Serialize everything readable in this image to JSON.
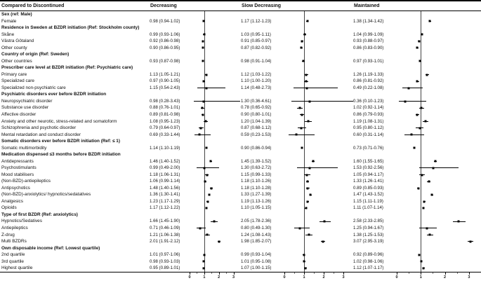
{
  "header": {
    "left": "Compared to Discontinued",
    "groups": [
      "Decreasing",
      "Slow Decreasing",
      "Maintained"
    ]
  },
  "chart_data": {
    "type": "scatter",
    "subtype": "forest-plot",
    "title": "Compared to Discontinued",
    "columns": [
      "Decreasing",
      "Slow Decreasing",
      "Maintained"
    ],
    "axis": {
      "min": 0,
      "max": 3.5,
      "ticks": [
        0,
        1,
        2,
        3
      ],
      "reference_line": 1
    },
    "rows": [
      {
        "type": "section",
        "label": "Sex (ref: Male)"
      },
      {
        "type": "item",
        "label": "Female",
        "groups": [
          {
            "text": "0.98 (0.94-1.02)",
            "est": 0.98,
            "lo": 0.94,
            "hi": 1.02
          },
          {
            "text": "1.17 (1.12-1.23)",
            "est": 1.17,
            "lo": 1.12,
            "hi": 1.23
          },
          {
            "text": "1.38 (1.34-1.42)",
            "est": 1.38,
            "lo": 1.34,
            "hi": 1.42
          }
        ]
      },
      {
        "type": "section",
        "label": "Residence in Sweden at BZDR initiation (Ref: Stockholm county)"
      },
      {
        "type": "item",
        "label": "Skåne",
        "groups": [
          {
            "text": "0.99 (0.93-1.06)",
            "est": 0.99,
            "lo": 0.93,
            "hi": 1.06
          },
          {
            "text": "1.03 (0.95-1.11)",
            "est": 1.03,
            "lo": 0.95,
            "hi": 1.11
          },
          {
            "text": "1.04 (0.99-1.09)",
            "est": 1.04,
            "lo": 0.99,
            "hi": 1.09
          }
        ]
      },
      {
        "type": "item",
        "label": "Västra Götaland",
        "groups": [
          {
            "text": "0.92 (0.86-0.98)",
            "est": 0.92,
            "lo": 0.86,
            "hi": 0.98
          },
          {
            "text": "0.91 (0.85-0.97)",
            "est": 0.91,
            "lo": 0.85,
            "hi": 0.97
          },
          {
            "text": "0.93 (0.88-0.97)",
            "est": 0.93,
            "lo": 0.88,
            "hi": 0.97
          }
        ]
      },
      {
        "type": "item",
        "label": "Other county",
        "groups": [
          {
            "text": "0.90 (0.86-0.95)",
            "est": 0.9,
            "lo": 0.86,
            "hi": 0.95
          },
          {
            "text": "0.87 (0.82-0.92)",
            "est": 0.87,
            "lo": 0.82,
            "hi": 0.92
          },
          {
            "text": "0.86 (0.83-0.90)",
            "est": 0.86,
            "lo": 0.83,
            "hi": 0.9
          }
        ]
      },
      {
        "type": "section",
        "label": "Country of origin (Ref: Sweden)"
      },
      {
        "type": "item",
        "label": "Other countries",
        "groups": [
          {
            "text": "0.93 (0.87-0.98)",
            "est": 0.93,
            "lo": 0.87,
            "hi": 0.98
          },
          {
            "text": "0.98 (0.91-1.04)",
            "est": 0.98,
            "lo": 0.91,
            "hi": 1.04
          },
          {
            "text": "0.97 (0.93-1.01)",
            "est": 0.97,
            "lo": 0.93,
            "hi": 1.01
          }
        ]
      },
      {
        "type": "section",
        "label": "Prescriber care level at BZDR initiation (Ref: Psychiatric care)"
      },
      {
        "type": "item",
        "label": "Primary care",
        "groups": [
          {
            "text": "1.13 (1.05-1.21)",
            "est": 1.13,
            "lo": 1.05,
            "hi": 1.21
          },
          {
            "text": "1.12 (1.03-1.22)",
            "est": 1.12,
            "lo": 1.03,
            "hi": 1.22
          },
          {
            "text": "1.26 (1.19-1.33)",
            "est": 1.26,
            "lo": 1.19,
            "hi": 1.33
          }
        ]
      },
      {
        "type": "item",
        "label": "Specialized care",
        "groups": [
          {
            "text": "0.97 (0.90-1.05)",
            "est": 0.97,
            "lo": 0.9,
            "hi": 1.05
          },
          {
            "text": "1.10 (1.00-1.20)",
            "est": 1.1,
            "lo": 1.0,
            "hi": 1.2
          },
          {
            "text": "0.86 (0.81-0.92)",
            "est": 0.86,
            "lo": 0.81,
            "hi": 0.92
          }
        ]
      },
      {
        "type": "item",
        "label": "Specialized non-psychiatric care",
        "groups": [
          {
            "text": "1.15 (0.54-2.43)",
            "est": 1.15,
            "lo": 0.54,
            "hi": 2.43
          },
          {
            "text": "1.14 (0.48-2.73)",
            "est": 1.14,
            "lo": 0.48,
            "hi": 2.73
          },
          {
            "text": "0.49 (0.22-1.08)",
            "est": 0.49,
            "lo": 0.22,
            "hi": 1.08
          }
        ]
      },
      {
        "type": "section",
        "label": "Psychiatric disorders ever before BZDR initiation"
      },
      {
        "type": "item",
        "label": "Neuropsychiatric disorder",
        "groups": [
          {
            "text": "0.98 (0.28-3.43)",
            "est": 0.98,
            "lo": 0.28,
            "hi": 3.43
          },
          {
            "text": "1.30 (0.36-4.61)",
            "est": 1.3,
            "lo": 0.36,
            "hi": 4.61
          },
          {
            "text": "0.36 (0.10-1.23)",
            "est": 0.36,
            "lo": 0.1,
            "hi": 1.23
          }
        ]
      },
      {
        "type": "item",
        "label": "Substance use disorder",
        "groups": [
          {
            "text": "0.88 (0.76-1.01)",
            "est": 0.88,
            "lo": 0.76,
            "hi": 1.01
          },
          {
            "text": "0.78 (0.65-0.92)",
            "est": 0.78,
            "lo": 0.65,
            "hi": 0.92
          },
          {
            "text": "1.02 (0.92-1.14)",
            "est": 1.02,
            "lo": 0.92,
            "hi": 1.14
          }
        ]
      },
      {
        "type": "item",
        "label": "Affective disorder",
        "groups": [
          {
            "text": "0.89 (0.81-0.98)",
            "est": 0.89,
            "lo": 0.81,
            "hi": 0.98
          },
          {
            "text": "0.90 (0.80-1.01)",
            "est": 0.9,
            "lo": 0.8,
            "hi": 1.01
          },
          {
            "text": "0.86 (0.79-0.93)",
            "est": 0.86,
            "lo": 0.79,
            "hi": 0.93
          }
        ]
      },
      {
        "type": "item",
        "label": "Anxiety and other neurotic, stress-related and somatoform",
        "groups": [
          {
            "text": "1.08 (0.95-1.23)",
            "est": 1.08,
            "lo": 0.95,
            "hi": 1.23
          },
          {
            "text": "1.20 (1.04-1.39)",
            "est": 1.2,
            "lo": 1.04,
            "hi": 1.39
          },
          {
            "text": "1.19 (1.08-1.31)",
            "est": 1.19,
            "lo": 1.08,
            "hi": 1.31
          }
        ]
      },
      {
        "type": "item",
        "label": "Schizophrenia and psychotic disorder",
        "groups": [
          {
            "text": "0.79 (0.64-0.97)",
            "est": 0.79,
            "lo": 0.64,
            "hi": 0.97
          },
          {
            "text": "0.87 (0.68-1.12)",
            "est": 0.87,
            "lo": 0.68,
            "hi": 1.12
          },
          {
            "text": "0.95 (0.80-1.12)",
            "est": 0.95,
            "lo": 0.8,
            "hi": 1.12
          }
        ]
      },
      {
        "type": "item",
        "label": "Mental retardation and conduct disorder",
        "groups": [
          {
            "text": "0.69 (0.33-1.44)",
            "est": 0.69,
            "lo": 0.33,
            "hi": 1.44
          },
          {
            "text": "0.59 (0.23-1.53)",
            "est": 0.59,
            "lo": 0.23,
            "hi": 1.53
          },
          {
            "text": "0.60 (0.31-1.14)",
            "est": 0.6,
            "lo": 0.31,
            "hi": 1.14
          }
        ]
      },
      {
        "type": "section",
        "label": "Somatic disorders ever before BZDR initiation (Ref: ≤ 1)"
      },
      {
        "type": "item",
        "label": "Somatic multimorbidity",
        "groups": [
          {
            "text": "1.14 (1.10-1.19)",
            "est": 1.14,
            "lo": 1.1,
            "hi": 1.19
          },
          {
            "text": "0.90 (0.86-0.94)",
            "est": 0.9,
            "lo": 0.86,
            "hi": 0.94
          },
          {
            "text": "0.73 (0.71-0.76)",
            "est": 0.73,
            "lo": 0.71,
            "hi": 0.76
          }
        ]
      },
      {
        "type": "section",
        "label": "Medication dispensed ≤3 months before BZDR initiation"
      },
      {
        "type": "item",
        "label": "Antidepressants",
        "groups": [
          {
            "text": "1.46 (1.40-1.52)",
            "est": 1.46,
            "lo": 1.4,
            "hi": 1.52
          },
          {
            "text": "1.45 (1.39-1.52)",
            "est": 1.45,
            "lo": 1.39,
            "hi": 1.52
          },
          {
            "text": "1.60 (1.55-1.65)",
            "est": 1.6,
            "lo": 1.55,
            "hi": 1.65
          }
        ]
      },
      {
        "type": "item",
        "label": "Psychostimulants",
        "groups": [
          {
            "text": "0.99 (0.49-2.00)",
            "est": 0.99,
            "lo": 0.49,
            "hi": 2.0
          },
          {
            "text": "1.30 (0.63-2.72)",
            "est": 1.3,
            "lo": 0.63,
            "hi": 2.72
          },
          {
            "text": "1.53 (0.92-2.56)",
            "est": 1.53,
            "lo": 0.92,
            "hi": 2.56
          }
        ]
      },
      {
        "type": "item",
        "label": "Mood stabilisers",
        "groups": [
          {
            "text": "1.18 (1.06-1.31)",
            "est": 1.18,
            "lo": 1.06,
            "hi": 1.31
          },
          {
            "text": "1.15 (0.99-1.33)",
            "est": 1.15,
            "lo": 0.99,
            "hi": 1.33
          },
          {
            "text": "1.05 (0.94-1.17)",
            "est": 1.05,
            "lo": 0.94,
            "hi": 1.17
          }
        ]
      },
      {
        "type": "item",
        "label": "(Non-BZD)-antiepileptics",
        "groups": [
          {
            "text": "1.06 (0.99-1.14)",
            "est": 1.06,
            "lo": 0.99,
            "hi": 1.14
          },
          {
            "text": "1.18 (1.10-1.26)",
            "est": 1.18,
            "lo": 1.1,
            "hi": 1.26
          },
          {
            "text": "1.33 (1.26-1.41)",
            "est": 1.33,
            "lo": 1.26,
            "hi": 1.41
          }
        ]
      },
      {
        "type": "item",
        "label": "Antipsychotics",
        "groups": [
          {
            "text": "1.48 (1.40-1.56)",
            "est": 1.48,
            "lo": 1.4,
            "hi": 1.56
          },
          {
            "text": "1.18 (1.10-1.28)",
            "est": 1.18,
            "lo": 1.1,
            "hi": 1.28
          },
          {
            "text": "0.89 (0.85-0.93)",
            "est": 0.89,
            "lo": 0.85,
            "hi": 0.93
          }
        ]
      },
      {
        "type": "item",
        "label": "(Non-BZD)-anxiolytics/ hypnotics/sedatatives",
        "groups": [
          {
            "text": "1.36 (1.30-1.41)",
            "est": 1.36,
            "lo": 1.3,
            "hi": 1.41
          },
          {
            "text": "1.33 (1.27-1.39)",
            "est": 1.33,
            "lo": 1.27,
            "hi": 1.39
          },
          {
            "text": "1.47 (1.43-1.52)",
            "est": 1.47,
            "lo": 1.43,
            "hi": 1.52
          }
        ]
      },
      {
        "type": "item",
        "label": "Analgesics",
        "groups": [
          {
            "text": "1.23 (1.17-1.29)",
            "est": 1.23,
            "lo": 1.17,
            "hi": 1.29
          },
          {
            "text": "1.19 (1.13-1.26)",
            "est": 1.19,
            "lo": 1.13,
            "hi": 1.26
          },
          {
            "text": "1.15 (1.11-1.19)",
            "est": 1.15,
            "lo": 1.11,
            "hi": 1.19
          }
        ]
      },
      {
        "type": "item",
        "label": "Opioids",
        "groups": [
          {
            "text": "1.17 (1.12-1.22)",
            "est": 1.17,
            "lo": 1.12,
            "hi": 1.22
          },
          {
            "text": "1.10 (1.05-1.15)",
            "est": 1.1,
            "lo": 1.05,
            "hi": 1.15
          },
          {
            "text": "1.11 (1.07-1.14)",
            "est": 1.11,
            "lo": 1.07,
            "hi": 1.14
          }
        ]
      },
      {
        "type": "section",
        "label": "Type of first BZDR (Ref: anxiolytics)"
      },
      {
        "type": "item",
        "label": "Hypnotics/Sedatives",
        "groups": [
          {
            "text": "1.66 (1.45-1.90)",
            "est": 1.66,
            "lo": 1.45,
            "hi": 1.9
          },
          {
            "text": "2.05 (1.78-2.36)",
            "est": 2.05,
            "lo": 1.78,
            "hi": 2.36
          },
          {
            "text": "2.58 (2.33-2.85)",
            "est": 2.58,
            "lo": 2.33,
            "hi": 2.85
          }
        ]
      },
      {
        "type": "item",
        "label": "Antiepileptics",
        "groups": [
          {
            "text": "0.71 (0.46-1.09)",
            "est": 0.71,
            "lo": 0.46,
            "hi": 1.09
          },
          {
            "text": "0.80 (0.49-1.30)",
            "est": 0.8,
            "lo": 0.49,
            "hi": 1.3
          },
          {
            "text": "1.25 (0.94-1.67)",
            "est": 1.25,
            "lo": 0.94,
            "hi": 1.67
          }
        ]
      },
      {
        "type": "item",
        "label": "Z-drug",
        "groups": [
          {
            "text": "1.21 (1.06-1.38)",
            "est": 1.21,
            "lo": 1.06,
            "hi": 1.38
          },
          {
            "text": "1.24 (1.08-1.43)",
            "est": 1.24,
            "lo": 1.08,
            "hi": 1.43
          },
          {
            "text": "1.38 (1.25-1.53)",
            "est": 1.38,
            "lo": 1.25,
            "hi": 1.53
          }
        ]
      },
      {
        "type": "item",
        "label": "Multi BZDRs",
        "groups": [
          {
            "text": "2.01 (1.91-2.12)",
            "est": 2.01,
            "lo": 1.91,
            "hi": 2.12
          },
          {
            "text": "1.98 (1.85-2.07)",
            "est": 1.98,
            "lo": 1.85,
            "hi": 2.07
          },
          {
            "text": "3.07 (2.95-3.19)",
            "est": 3.07,
            "lo": 2.95,
            "hi": 3.19
          }
        ]
      },
      {
        "type": "section",
        "label": "Own disposable income (Ref: Lowest quartile)"
      },
      {
        "type": "item",
        "label": "2nd quartile",
        "groups": [
          {
            "text": "1.01 (0.97-1.06)",
            "est": 1.01,
            "lo": 0.97,
            "hi": 1.06
          },
          {
            "text": "0.99 (0.93-1.04)",
            "est": 0.99,
            "lo": 0.93,
            "hi": 1.04
          },
          {
            "text": "0.92 (0.89-0.96)",
            "est": 0.92,
            "lo": 0.89,
            "hi": 0.96
          }
        ]
      },
      {
        "type": "item",
        "label": "3rd quartile",
        "groups": [
          {
            "text": "0.98 (0.93-1.03)",
            "est": 0.98,
            "lo": 0.93,
            "hi": 1.03
          },
          {
            "text": "1.01 (0.95-1.08)",
            "est": 1.01,
            "lo": 0.95,
            "hi": 1.08
          },
          {
            "text": "1.02 (0.98-1.06)",
            "est": 1.02,
            "lo": 0.98,
            "hi": 1.06
          }
        ]
      },
      {
        "type": "item",
        "label": "Highest quartile",
        "groups": [
          {
            "text": "0.95 (0.89-1.01)",
            "est": 0.95,
            "lo": 0.89,
            "hi": 1.01
          },
          {
            "text": "1.07 (1.00-1.15)",
            "est": 1.07,
            "lo": 1.0,
            "hi": 1.15
          },
          {
            "text": "1.12 (1.07-1.17)",
            "est": 1.12,
            "lo": 1.07,
            "hi": 1.17
          }
        ]
      }
    ]
  }
}
